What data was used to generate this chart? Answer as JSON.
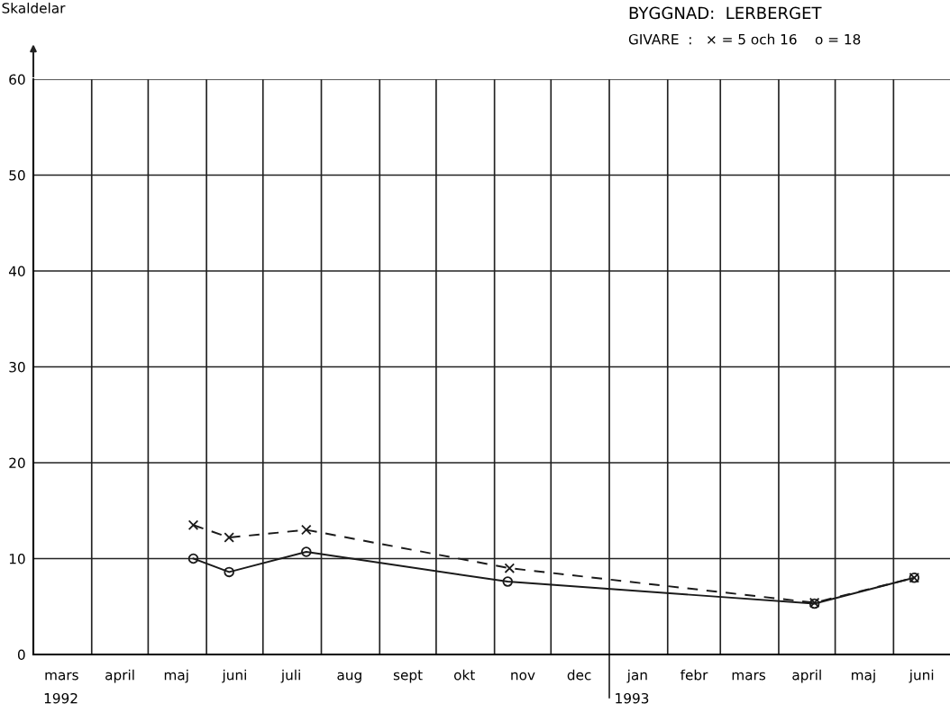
{
  "chart_data": {
    "type": "line",
    "title": "BYGGNAD:  LERBERGET",
    "subtitle": "GIVARE  :   × = 5 och 16    o = 18",
    "ylabel": "Skaldelar",
    "annotations": [
      "1992",
      "1993"
    ],
    "series": [
      {
        "color": "#1a1a1a",
        "marker": "cross",
        "line_style": "dashed",
        "x": [
          "1992-05-25",
          "1992-06-13",
          "1992-07-24",
          "1992-11-09",
          "1993-04-20",
          "1993-06-12"
        ],
        "values": [
          13.5,
          12.2,
          13.0,
          9.0,
          5.4,
          8.0
        ]
      },
      {
        "color": "#1a1a1a",
        "marker": "circle",
        "line_style": "solid",
        "x": [
          "1992-05-25",
          "1992-06-13",
          "1992-07-24",
          "1992-11-08",
          "1993-04-20",
          "1993-06-12"
        ],
        "values": [
          10.0,
          8.6,
          10.7,
          7.6,
          5.3,
          8.0
        ]
      }
    ],
    "xlim": [
      "1992-03-01",
      "1993-07-01"
    ],
    "xticks": [
      {
        "value": "1992-03-16",
        "label": "mars"
      },
      {
        "value": "1992-04-01",
        "label": null
      },
      {
        "value": "1992-04-16",
        "label": "april"
      },
      {
        "value": "1992-05-01",
        "label": null
      },
      {
        "value": "1992-05-16",
        "label": "maj"
      },
      {
        "value": "1992-06-01",
        "label": null
      },
      {
        "value": "1992-06-16",
        "label": "juni"
      },
      {
        "value": "1992-07-01",
        "label": null
      },
      {
        "value": "1992-07-16",
        "label": "juli"
      },
      {
        "value": "1992-08-01",
        "label": null
      },
      {
        "value": "1992-08-16",
        "label": "aug"
      },
      {
        "value": "1992-09-01",
        "label": null
      },
      {
        "value": "1992-09-16",
        "label": "sept"
      },
      {
        "value": "1992-10-01",
        "label": null
      },
      {
        "value": "1992-10-16",
        "label": "okt"
      },
      {
        "value": "1992-11-01",
        "label": null
      },
      {
        "value": "1992-11-16",
        "label": "nov"
      },
      {
        "value": "1992-12-01",
        "label": null
      },
      {
        "value": "1992-12-16",
        "label": "dec"
      },
      {
        "value": "1993-01-01",
        "label": null
      },
      {
        "value": "1993-01-16",
        "label": "jan"
      },
      {
        "value": "1993-02-01",
        "label": null
      },
      {
        "value": "1993-02-15",
        "label": "febr"
      },
      {
        "value": "1993-03-01",
        "label": null
      },
      {
        "value": "1993-03-16",
        "label": "mars"
      },
      {
        "value": "1993-04-01",
        "label": null
      },
      {
        "value": "1993-04-16",
        "label": "april"
      },
      {
        "value": "1993-05-01",
        "label": null
      },
      {
        "value": "1993-05-16",
        "label": "maj"
      },
      {
        "value": "1993-06-01",
        "label": null
      },
      {
        "value": "1993-06-16",
        "label": "juni"
      }
    ],
    "ylim": [
      0,
      60
    ],
    "yticks": [
      0,
      10,
      20,
      30,
      40,
      50,
      60
    ],
    "grid": true,
    "legend": false
  }
}
